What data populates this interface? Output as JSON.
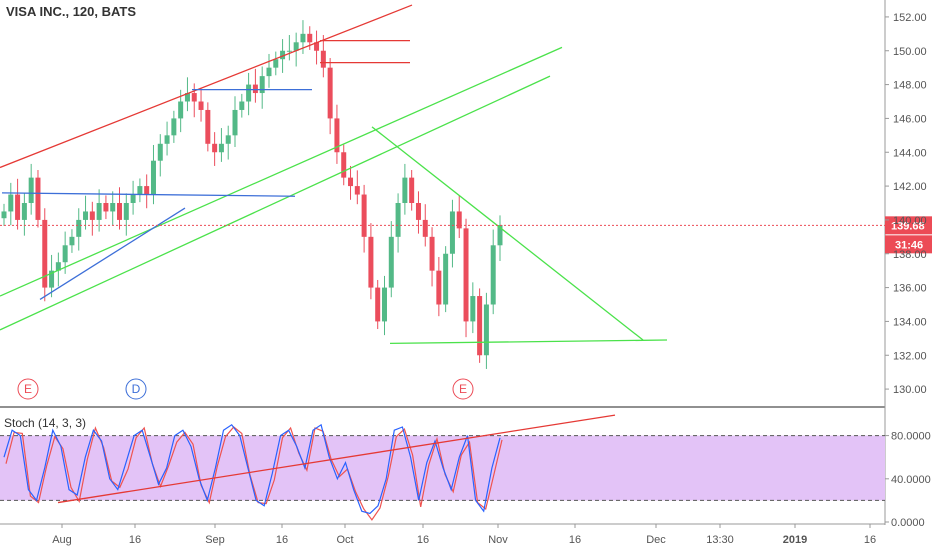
{
  "title": "VISA INC., 120, BATS",
  "stoch_label": "Stoch (14, 3, 3)",
  "colors": {
    "up": "#53b987",
    "down": "#eb4d5c",
    "channel": "#e53935",
    "green_line": "#4be24b",
    "blue_line": "#3d6fd8",
    "stoch_k": "#2962ff",
    "stoch_d": "#ef5350",
    "stoch_band": "#e3c3f7",
    "price_tag": "#ec4b56"
  },
  "price_tag": {
    "price": "139.68",
    "countdown": "31:46"
  },
  "events": [
    {
      "label": "E",
      "color": "#ec4b56",
      "date": "2018-07-24"
    },
    {
      "label": "D",
      "color": "#3d6fd8",
      "date": "2018-08-16"
    },
    {
      "label": "E",
      "color": "#ec4b56",
      "date": "2018-10-24"
    }
  ],
  "chart_data": {
    "type": "candlestick",
    "symbol": "VISA INC.",
    "interval": "120",
    "exchange": "BATS",
    "y_axis": {
      "ticks": [
        "152.00",
        "150.00",
        "148.00",
        "146.00",
        "144.00",
        "142.00",
        "140.00",
        "138.00",
        "136.00",
        "134.00",
        "132.00",
        "130.00"
      ],
      "range": [
        129,
        153
      ]
    },
    "x_axis": {
      "ticks": [
        "Aug",
        "16",
        "Sep",
        "16",
        "Oct",
        "16",
        "Nov",
        "16",
        "Dec",
        "13:30",
        "2019",
        "16"
      ]
    },
    "last_price": 139.68,
    "approx_closes": [
      140.5,
      141.5,
      140.0,
      141.0,
      142.5,
      140.0,
      136.0,
      137.0,
      137.5,
      138.5,
      139.0,
      140.0,
      140.5,
      140.0,
      141.0,
      140.5,
      141.0,
      140.0,
      141.0,
      141.5,
      142.0,
      141.5,
      143.5,
      144.5,
      145.0,
      146.0,
      147.0,
      147.5,
      147.0,
      146.5,
      144.5,
      144.0,
      144.5,
      145.0,
      146.5,
      147.0,
      148.0,
      147.5,
      148.5,
      149.0,
      149.5,
      150.0,
      150.0,
      150.5,
      151.0,
      150.5,
      150.0,
      149.0,
      146.0,
      144.0,
      142.5,
      142.0,
      141.5,
      139.0,
      136.0,
      134.0,
      136.0,
      139.0,
      141.0,
      142.5,
      141.0,
      140.0,
      139.0,
      137.0,
      135.0,
      138.0,
      140.5,
      139.5,
      134.0,
      135.5,
      132.0,
      135.0,
      138.5,
      139.7
    ],
    "stochastic": {
      "params": "14, 3, 3",
      "ticks": [
        "80.0000",
        "40.0000",
        "0.0000"
      ],
      "upper_band": 80,
      "lower_band": 20,
      "approx_k": [
        60,
        85,
        80,
        30,
        20,
        50,
        85,
        70,
        30,
        25,
        60,
        85,
        75,
        40,
        30,
        55,
        80,
        85,
        60,
        35,
        50,
        80,
        85,
        70,
        40,
        20,
        50,
        85,
        90,
        80,
        50,
        20,
        15,
        45,
        80,
        85,
        70,
        50,
        85,
        90,
        60,
        40,
        55,
        30,
        10,
        8,
        15,
        40,
        85,
        88,
        60,
        20,
        55,
        75,
        50,
        30,
        60,
        80,
        20,
        10,
        50,
        78
      ]
    }
  }
}
